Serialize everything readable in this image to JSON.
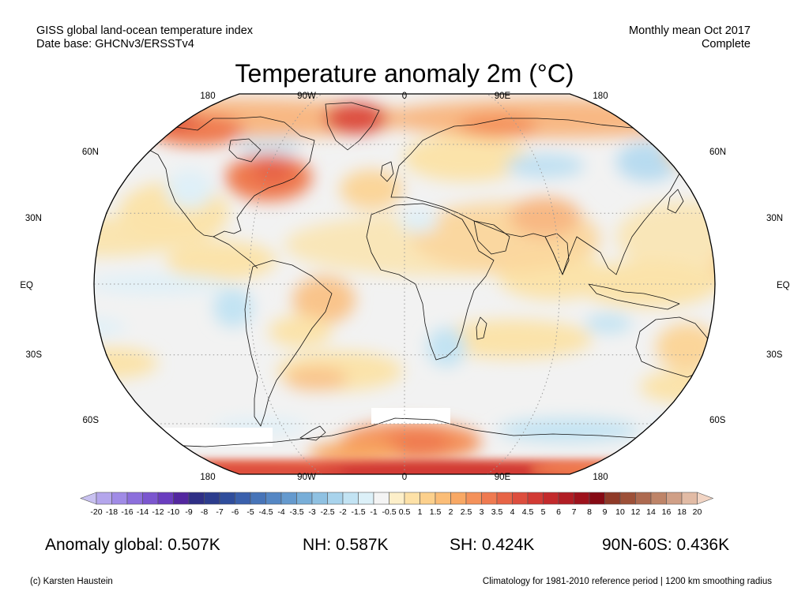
{
  "header": {
    "left_line1": "GISS global land-ocean temperature index",
    "left_line2": "Date base: GHCNv3/ERSSTv4",
    "right_line1": "Monthly mean Oct 2017",
    "right_line2": "Complete"
  },
  "title": "Temperature anomaly 2m (°C)",
  "map": {
    "projection": "Robinson",
    "lon_labels": [
      "180",
      "90W",
      "0",
      "90E",
      "180"
    ],
    "lat_labels": [
      "60N",
      "30N",
      "EQ",
      "30S",
      "60S"
    ],
    "colors": {
      "ocean_neutral": "#f2f2f2",
      "coast": "#111111",
      "grid": "#9a9a9a"
    }
  },
  "colorbar": {
    "labels": [
      "-20",
      "-18",
      "-16",
      "-14",
      "-12",
      "-10",
      "-9",
      "-8",
      "-7",
      "-6",
      "-5",
      "-4.5",
      "-4",
      "-3.5",
      "-3",
      "-2.5",
      "-2",
      "-1.5",
      "-1",
      "-0.5",
      "0.5",
      "1",
      "1.5",
      "2",
      "2.5",
      "3",
      "3.5",
      "4",
      "4.5",
      "5",
      "6",
      "7",
      "8",
      "9",
      "10",
      "12",
      "14",
      "16",
      "18",
      "20"
    ],
    "colors": [
      "#c8c1f0",
      "#b4a6ec",
      "#a08be6",
      "#8c6fdc",
      "#7b56cf",
      "#6a3dbf",
      "#53279f",
      "#2f2f86",
      "#2c3c8d",
      "#2f4d9c",
      "#3a60ac",
      "#4774b8",
      "#5587c4",
      "#659ace",
      "#78aed8",
      "#8fc1e2",
      "#a8d3ec",
      "#c2e3f3",
      "#dcf0f8",
      "#f4f4f4",
      "#fdefc9",
      "#fde1a7",
      "#fcd08c",
      "#fbbd77",
      "#f8a864",
      "#f4915a",
      "#ef7a50",
      "#e76446",
      "#dd4e3e",
      "#d23a34",
      "#c32a2c",
      "#b11d24",
      "#9e121c",
      "#860a14",
      "#8f3a28",
      "#9d5038",
      "#ad6a50",
      "#be8468",
      "#d09f86",
      "#e2bba5",
      "#f2d5c4"
    ]
  },
  "stats": {
    "global": "Anomaly global: 0.507K",
    "nh": "NH: 0.587K",
    "sh": "SH: 0.424K",
    "polar": "90N-60S: 0.436K"
  },
  "footer": {
    "left": "(c) Karsten Haustein",
    "right": "Climatology for 1981-2010 reference period | 1200 km smoothing radius"
  }
}
